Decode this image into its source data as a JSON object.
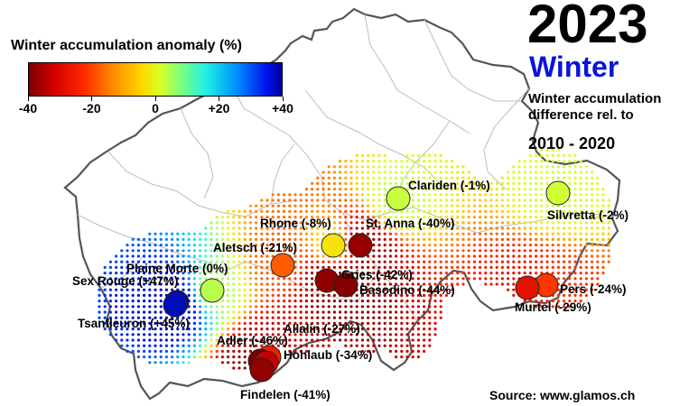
{
  "header": {
    "year": "2023",
    "season": "Winter",
    "subtitle_lines": [
      "Winter accumulation",
      "difference rel. to"
    ],
    "period": "2010 - 2020"
  },
  "legend": {
    "title": "Winter accumulation anomaly (%)",
    "ticks": [
      "-40",
      "-20",
      "0",
      "+20",
      "+40"
    ],
    "range": [
      -40,
      40
    ]
  },
  "source": "Source: www.glamos.ch",
  "colors": {
    "minus45": "#7a0000",
    "minus40": "#8b0000",
    "minus30": "#e01000",
    "minus25": "#ff3a00",
    "minus20": "#ff7a10",
    "minus10": "#ffcf00",
    "zero": "#c6ff4a",
    "plus45": "#0010e0"
  },
  "glaciers": [
    {
      "name": "Clariden",
      "anomaly": -1,
      "label": "Clariden (-1%)"
    },
    {
      "name": "Silvretta",
      "anomaly": -2,
      "label": "Silvretta (-2%)"
    },
    {
      "name": "Rhone",
      "anomaly": -8,
      "label": "Rhone (-8%)"
    },
    {
      "name": "St. Anna",
      "anomaly": -40,
      "label": "St. Anna (-40%)"
    },
    {
      "name": "Aletsch",
      "anomaly": -21,
      "label": "Aletsch (-21%)"
    },
    {
      "name": "Plaine Morte",
      "anomaly": 0,
      "label": "Plaine Morte (0%)"
    },
    {
      "name": "Sex Rouge",
      "anomaly": 47,
      "label": "Sex Rouge (+47%)"
    },
    {
      "name": "Tsanfleuron",
      "anomaly": 45,
      "label": "Tsanfleuron (+45%)"
    },
    {
      "name": "Gries",
      "anomaly": -42,
      "label": "Gries (-42%)"
    },
    {
      "name": "Basodino",
      "anomaly": -44,
      "label": "Basodino (-44%)"
    },
    {
      "name": "Pers",
      "anomaly": -24,
      "label": "Pers (-24%)"
    },
    {
      "name": "Murtel",
      "anomaly": -29,
      "label": "Murtel (-29%)"
    },
    {
      "name": "Allalin",
      "anomaly": -27,
      "label": "Allalin (-27%)"
    },
    {
      "name": "Adler",
      "anomaly": -46,
      "label": "Adler (-46%)"
    },
    {
      "name": "Hohlaub",
      "anomaly": -34,
      "label": "Hohlaub (-34%)"
    },
    {
      "name": "Findelen",
      "anomaly": -41,
      "label": "Findelen (-41%)"
    }
  ]
}
